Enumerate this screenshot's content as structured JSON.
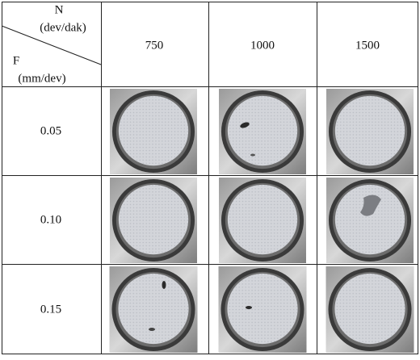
{
  "table": {
    "corner": {
      "n_label": "N",
      "n_unit": "(dev/dak)",
      "f_label": "F",
      "f_unit": "(mm/dev)"
    },
    "columns": [
      "750",
      "1000",
      "1500"
    ],
    "rows": [
      "0.05",
      "0.10",
      "0.15"
    ]
  }
}
